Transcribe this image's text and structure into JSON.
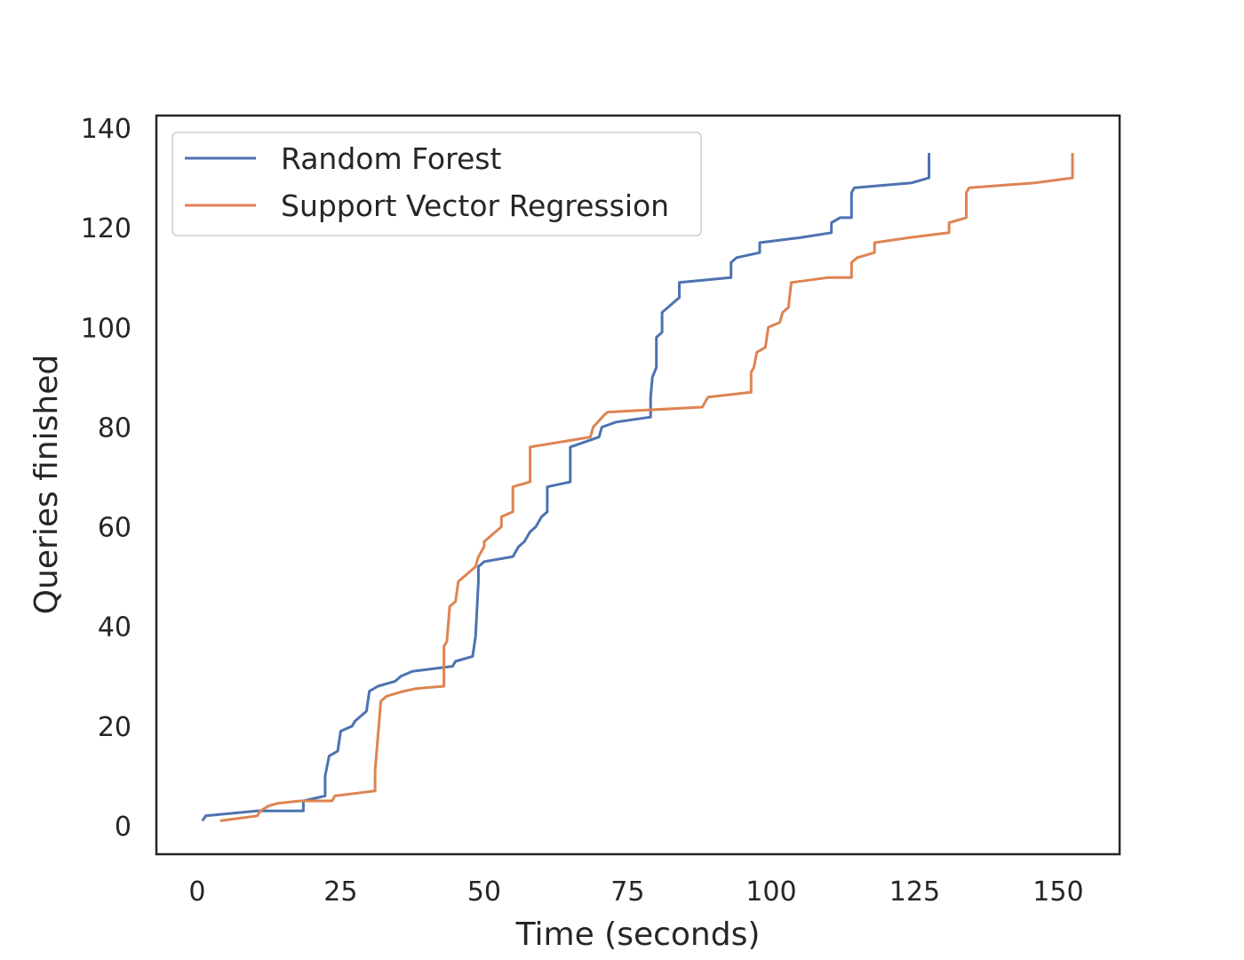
{
  "chart_data": {
    "type": "line",
    "xlabel": "Time (seconds)",
    "ylabel": "Queries finished",
    "xlim": [
      -7.1,
      160.7
    ],
    "ylim": [
      -5.7,
      142.5
    ],
    "xticks": [
      0,
      25,
      50,
      75,
      100,
      125,
      150
    ],
    "yticks": [
      0,
      20,
      40,
      60,
      80,
      100,
      120,
      140
    ],
    "grid": false,
    "legend_position": "upper-left",
    "series": [
      {
        "name": "Random Forest",
        "color": "#4c72b0",
        "points": [
          [
            0.9,
            1
          ],
          [
            1.5,
            2
          ],
          [
            10.5,
            3
          ],
          [
            18.5,
            3
          ],
          [
            18.5,
            5
          ],
          [
            22.3,
            6
          ],
          [
            22.3,
            10
          ],
          [
            23,
            14
          ],
          [
            24.5,
            15
          ],
          [
            25,
            19
          ],
          [
            27,
            20
          ],
          [
            27.5,
            21
          ],
          [
            29.5,
            23
          ],
          [
            30,
            27
          ],
          [
            31.5,
            28
          ],
          [
            34.5,
            29
          ],
          [
            35.5,
            30
          ],
          [
            37.5,
            31
          ],
          [
            44.5,
            32
          ],
          [
            45,
            33
          ],
          [
            48,
            34
          ],
          [
            48.5,
            38
          ],
          [
            49,
            49
          ],
          [
            49,
            52
          ],
          [
            50,
            53
          ],
          [
            55,
            54
          ],
          [
            56,
            56
          ],
          [
            57,
            57
          ],
          [
            58,
            59
          ],
          [
            59,
            60
          ],
          [
            60,
            62
          ],
          [
            61,
            63
          ],
          [
            61,
            68
          ],
          [
            65,
            69
          ],
          [
            65,
            76
          ],
          [
            70,
            78
          ],
          [
            70.5,
            80
          ],
          [
            73,
            81
          ],
          [
            79,
            82
          ],
          [
            79,
            86
          ],
          [
            79.3,
            90
          ],
          [
            80,
            92
          ],
          [
            80,
            98
          ],
          [
            81,
            99
          ],
          [
            81,
            103
          ],
          [
            83,
            105
          ],
          [
            84,
            106
          ],
          [
            84,
            109
          ],
          [
            93,
            110
          ],
          [
            93,
            113
          ],
          [
            94,
            114
          ],
          [
            98,
            115
          ],
          [
            98,
            117
          ],
          [
            105,
            118
          ],
          [
            110.5,
            119
          ],
          [
            110.5,
            121
          ],
          [
            112,
            122
          ],
          [
            114,
            122
          ],
          [
            114,
            127
          ],
          [
            114.5,
            128
          ],
          [
            124.5,
            129
          ],
          [
            127.5,
            130
          ],
          [
            127.5,
            135
          ]
        ]
      },
      {
        "name": "Support Vector Regression",
        "color": "#dd8452",
        "points": [
          [
            4,
            1
          ],
          [
            10.5,
            2
          ],
          [
            11,
            3
          ],
          [
            12.5,
            4
          ],
          [
            14,
            4.5
          ],
          [
            18,
            5
          ],
          [
            23.5,
            5
          ],
          [
            24,
            6
          ],
          [
            31,
            7
          ],
          [
            31,
            11
          ],
          [
            32,
            25
          ],
          [
            33,
            26
          ],
          [
            36,
            27
          ],
          [
            38,
            27.5
          ],
          [
            43,
            28
          ],
          [
            43,
            36
          ],
          [
            43.5,
            37
          ],
          [
            44,
            44
          ],
          [
            45,
            45
          ],
          [
            45.5,
            49
          ],
          [
            48.5,
            52
          ],
          [
            49,
            54
          ],
          [
            50,
            56
          ],
          [
            50,
            57
          ],
          [
            51,
            58
          ],
          [
            52,
            59
          ],
          [
            53,
            60
          ],
          [
            53,
            62
          ],
          [
            55,
            63
          ],
          [
            55,
            68
          ],
          [
            58,
            69
          ],
          [
            58,
            76
          ],
          [
            68.5,
            78
          ],
          [
            69,
            80
          ],
          [
            71,
            82.5
          ],
          [
            71.5,
            83
          ],
          [
            88,
            84
          ],
          [
            89,
            86
          ],
          [
            96.5,
            87
          ],
          [
            96.5,
            91
          ],
          [
            97,
            92
          ],
          [
            97.5,
            95
          ],
          [
            99,
            96
          ],
          [
            99.5,
            100
          ],
          [
            101.5,
            101
          ],
          [
            102,
            103
          ],
          [
            103,
            104
          ],
          [
            103.5,
            109
          ],
          [
            110,
            110
          ],
          [
            114,
            110
          ],
          [
            114,
            113
          ],
          [
            115,
            114
          ],
          [
            118,
            115
          ],
          [
            118,
            117
          ],
          [
            124,
            118
          ],
          [
            131,
            119
          ],
          [
            131,
            121
          ],
          [
            134,
            122
          ],
          [
            134,
            127
          ],
          [
            134.5,
            128
          ],
          [
            146,
            129
          ],
          [
            152.5,
            130
          ],
          [
            152.5,
            135
          ]
        ]
      }
    ]
  }
}
